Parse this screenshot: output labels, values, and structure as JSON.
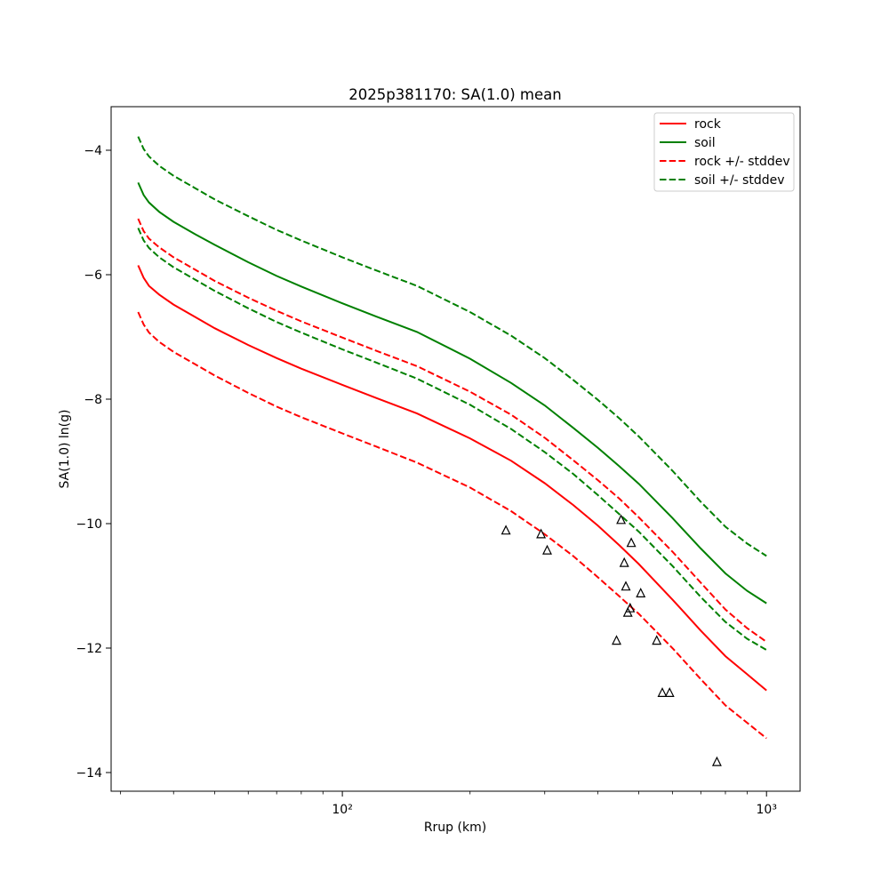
{
  "chart_data": {
    "type": "line",
    "title": "2025p381170: SA(1.0) mean",
    "xlabel": "Rrup (km)",
    "ylabel": "SA(1.0) ln(g)",
    "xscale": "log",
    "xlim": [
      28.5,
      1200
    ],
    "ylim": [
      -14.3,
      -3.3
    ],
    "x_tick_values": [
      100,
      1000
    ],
    "x_tick_labels": [
      "10²",
      "10³"
    ],
    "y_ticks": [
      -4,
      -6,
      -8,
      -10,
      -12,
      -14
    ],
    "y_tick_labels": [
      "−4",
      "−6",
      "−8",
      "−10",
      "−12",
      "−14"
    ],
    "grid": false,
    "legend_position": "top-right",
    "x": [
      33,
      34,
      35,
      37,
      40,
      45,
      50,
      60,
      70,
      80,
      100,
      120,
      150,
      200,
      250,
      300,
      350,
      400,
      450,
      500,
      600,
      700,
      800,
      900,
      1000
    ],
    "series": [
      {
        "name": "rock",
        "color": "#ff0000",
        "dash": "solid",
        "values": [
          -5.85,
          -6.05,
          -6.18,
          -6.32,
          -6.48,
          -6.68,
          -6.86,
          -7.13,
          -7.34,
          -7.51,
          -7.77,
          -7.98,
          -8.23,
          -8.63,
          -8.99,
          -9.35,
          -9.7,
          -10.03,
          -10.35,
          -10.65,
          -11.22,
          -11.72,
          -12.13,
          -12.42,
          -12.68
        ]
      },
      {
        "name": "soil",
        "color": "#008000",
        "dash": "solid",
        "values": [
          -4.52,
          -4.72,
          -4.84,
          -4.99,
          -5.15,
          -5.35,
          -5.52,
          -5.8,
          -6.02,
          -6.19,
          -6.46,
          -6.67,
          -6.92,
          -7.35,
          -7.74,
          -8.1,
          -8.46,
          -8.78,
          -9.08,
          -9.36,
          -9.91,
          -10.4,
          -10.8,
          -11.08,
          -11.28
        ]
      },
      {
        "name": "rock +/- stddev",
        "color": "#ff0000",
        "dash": "dashed",
        "values": [
          -5.1,
          -5.3,
          -5.42,
          -5.56,
          -5.72,
          -5.92,
          -6.1,
          -6.37,
          -6.58,
          -6.75,
          -7.01,
          -7.22,
          -7.47,
          -7.88,
          -8.25,
          -8.62,
          -8.98,
          -9.3,
          -9.6,
          -9.9,
          -10.45,
          -10.95,
          -11.38,
          -11.68,
          -11.9
        ]
      },
      {
        "name": "",
        "color": "#ff0000",
        "dash": "dashed",
        "values": [
          -6.6,
          -6.8,
          -6.93,
          -7.08,
          -7.24,
          -7.44,
          -7.62,
          -7.9,
          -8.12,
          -8.29,
          -8.55,
          -8.76,
          -9.02,
          -9.42,
          -9.8,
          -10.17,
          -10.52,
          -10.86,
          -11.17,
          -11.45,
          -12.0,
          -12.5,
          -12.92,
          -13.2,
          -13.45
        ]
      },
      {
        "name": "soil +/- stddev",
        "color": "#008000",
        "dash": "dashed",
        "values": [
          -3.78,
          -3.98,
          -4.1,
          -4.25,
          -4.41,
          -4.61,
          -4.79,
          -5.06,
          -5.28,
          -5.45,
          -5.72,
          -5.93,
          -6.18,
          -6.6,
          -6.98,
          -7.34,
          -7.69,
          -8.01,
          -8.31,
          -8.6,
          -9.15,
          -9.65,
          -10.05,
          -10.32,
          -10.52
        ]
      },
      {
        "name": "",
        "color": "#008000",
        "dash": "dashed",
        "values": [
          -5.25,
          -5.45,
          -5.57,
          -5.72,
          -5.88,
          -6.08,
          -6.26,
          -6.54,
          -6.76,
          -6.93,
          -7.2,
          -7.41,
          -7.67,
          -8.09,
          -8.48,
          -8.85,
          -9.2,
          -9.54,
          -9.85,
          -10.13,
          -10.68,
          -11.18,
          -11.58,
          -11.85,
          -12.03
        ]
      }
    ],
    "observations": {
      "marker": "triangle",
      "color": "#000000",
      "points": [
        {
          "x": 243,
          "y": -10.11
        },
        {
          "x": 294,
          "y": -10.17
        },
        {
          "x": 304,
          "y": -10.43
        },
        {
          "x": 443,
          "y": -11.88
        },
        {
          "x": 454,
          "y": -9.94
        },
        {
          "x": 462,
          "y": -10.63
        },
        {
          "x": 466,
          "y": -11.01
        },
        {
          "x": 471,
          "y": -11.43
        },
        {
          "x": 477,
          "y": -11.36
        },
        {
          "x": 480,
          "y": -10.31
        },
        {
          "x": 505,
          "y": -11.12
        },
        {
          "x": 551,
          "y": -11.88
        },
        {
          "x": 568,
          "y": -12.72
        },
        {
          "x": 591,
          "y": -12.72
        },
        {
          "x": 764,
          "y": -13.83
        }
      ]
    },
    "legend": [
      {
        "label": "rock",
        "color": "#ff0000",
        "dash": "solid"
      },
      {
        "label": "soil",
        "color": "#008000",
        "dash": "solid"
      },
      {
        "label": "rock +/- stddev",
        "color": "#ff0000",
        "dash": "dashed"
      },
      {
        "label": "soil +/- stddev",
        "color": "#008000",
        "dash": "dashed"
      }
    ]
  }
}
